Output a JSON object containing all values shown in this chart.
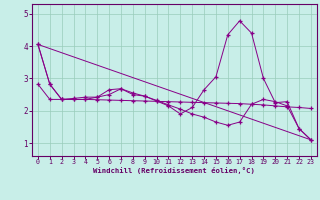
{
  "xlabel": "Windchill (Refroidissement éolien,°C)",
  "background_color": "#c8eee8",
  "grid_color": "#99ccbb",
  "line_color": "#880088",
  "axis_color": "#660066",
  "xlim": [
    -0.5,
    23.5
  ],
  "ylim": [
    0.6,
    5.3
  ],
  "yticks": [
    1,
    2,
    3,
    4,
    5
  ],
  "xticks": [
    0,
    1,
    2,
    3,
    4,
    5,
    6,
    7,
    8,
    9,
    10,
    11,
    12,
    13,
    14,
    15,
    16,
    17,
    18,
    19,
    20,
    21,
    22,
    23
  ],
  "series": [
    {
      "x": [
        0,
        1,
        2,
        3,
        4,
        5,
        6,
        7,
        8,
        9,
        10,
        11,
        12,
        13,
        14,
        15,
        16,
        17,
        18,
        19,
        20,
        21,
        22,
        23
      ],
      "y": [
        4.05,
        2.82,
        2.35,
        2.35,
        2.35,
        2.42,
        2.65,
        2.68,
        2.5,
        2.45,
        2.3,
        2.15,
        1.9,
        2.1,
        2.65,
        3.05,
        4.35,
        4.78,
        4.4,
        3.0,
        2.25,
        2.28,
        1.45,
        1.1
      ]
    },
    {
      "x": [
        0,
        1,
        2,
        3,
        4,
        5,
        6,
        7,
        8,
        9,
        10,
        11,
        12,
        13,
        14,
        15,
        16,
        17,
        18,
        19,
        20,
        21,
        22,
        23
      ],
      "y": [
        4.05,
        2.82,
        2.35,
        2.35,
        2.35,
        2.34,
        2.33,
        2.32,
        2.31,
        2.3,
        2.29,
        2.28,
        2.27,
        2.26,
        2.25,
        2.24,
        2.23,
        2.22,
        2.2,
        2.18,
        2.15,
        2.12,
        2.1,
        2.07
      ]
    },
    {
      "x": [
        0,
        23
      ],
      "y": [
        4.05,
        1.1
      ]
    },
    {
      "x": [
        0,
        1,
        2,
        3,
        4,
        5,
        6,
        7,
        8,
        9,
        10,
        11,
        12,
        13,
        14,
        15,
        16,
        17,
        18,
        19,
        20,
        21,
        22,
        23
      ],
      "y": [
        2.82,
        2.35,
        2.35,
        2.38,
        2.42,
        2.42,
        2.5,
        2.68,
        2.55,
        2.45,
        2.32,
        2.18,
        2.05,
        1.9,
        1.8,
        1.65,
        1.55,
        1.65,
        2.2,
        2.35,
        2.28,
        2.15,
        1.45,
        1.1
      ]
    }
  ]
}
